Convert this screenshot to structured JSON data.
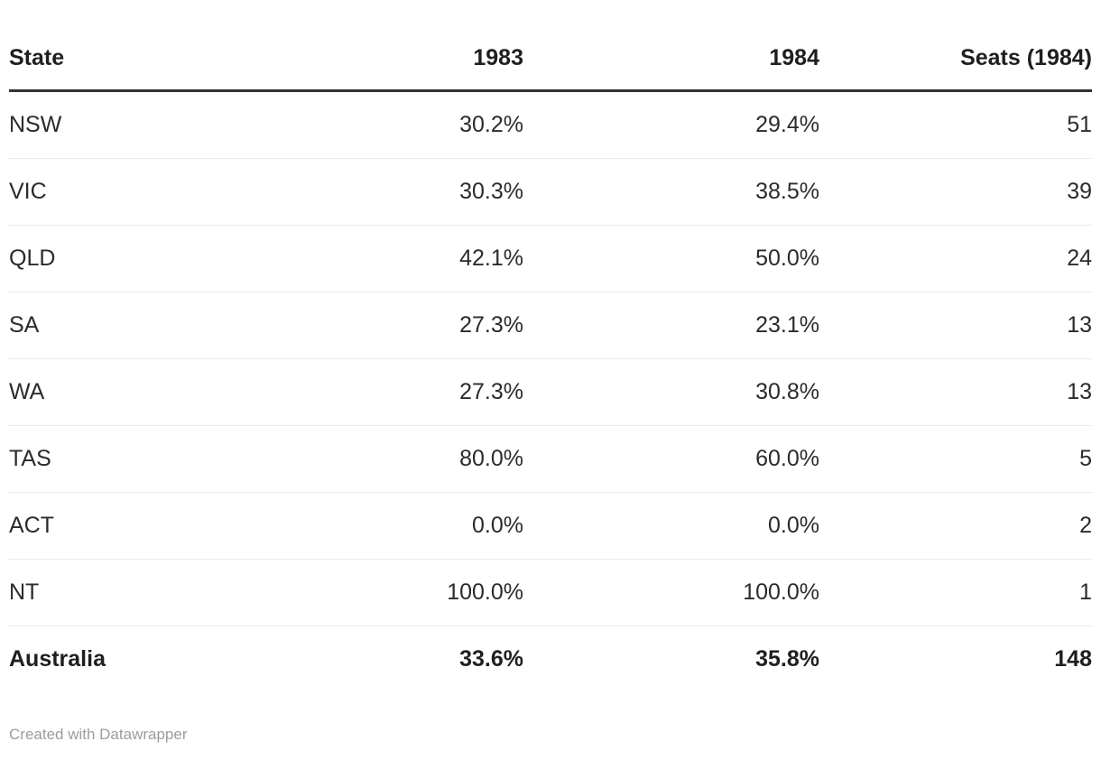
{
  "colors": {
    "background": "#ffffff",
    "text": "#2b2b2b",
    "header_text": "#1f1f1f",
    "header_rule": "#333333",
    "row_divider": "#ebebeb",
    "attribution_text": "#9c9c9c"
  },
  "table": {
    "header": [
      "State",
      "1983",
      "1984",
      "Seats (1984)"
    ],
    "rows": [
      [
        "NSW",
        "30.2%",
        "29.4%",
        "51"
      ],
      [
        "VIC",
        "30.3%",
        "38.5%",
        "39"
      ],
      [
        "QLD",
        "42.1%",
        "50.0%",
        "24"
      ],
      [
        "SA",
        "27.3%",
        "23.1%",
        "13"
      ],
      [
        "WA",
        "27.3%",
        "30.8%",
        "13"
      ],
      [
        "TAS",
        "80.0%",
        "60.0%",
        "5"
      ],
      [
        "ACT",
        "0.0%",
        "0.0%",
        "2"
      ],
      [
        "NT",
        "100.0%",
        "100.0%",
        "1"
      ]
    ],
    "total": [
      "Australia",
      "33.6%",
      "35.8%",
      "148"
    ]
  },
  "footer": {
    "attribution": "Created with Datawrapper"
  },
  "chart_data": {
    "type": "table",
    "title": "",
    "columns": [
      "State",
      "1983",
      "1984",
      "Seats (1984)"
    ],
    "categories": [
      "NSW",
      "VIC",
      "QLD",
      "SA",
      "WA",
      "TAS",
      "ACT",
      "NT",
      "Australia"
    ],
    "series": [
      {
        "name": "1983",
        "values": [
          30.2,
          30.3,
          42.1,
          27.3,
          27.3,
          80.0,
          0.0,
          100.0,
          33.6
        ],
        "unit": "%"
      },
      {
        "name": "1984",
        "values": [
          29.4,
          38.5,
          50.0,
          23.1,
          30.8,
          60.0,
          0.0,
          100.0,
          35.8
        ],
        "unit": "%"
      },
      {
        "name": "Seats (1984)",
        "values": [
          51,
          39,
          24,
          13,
          13,
          5,
          2,
          1,
          148
        ],
        "unit": "seats"
      }
    ],
    "layout_hints": {
      "total_row": "Australia",
      "numeric_columns_right_aligned": true,
      "grid": "horizontal row dividers only"
    }
  }
}
